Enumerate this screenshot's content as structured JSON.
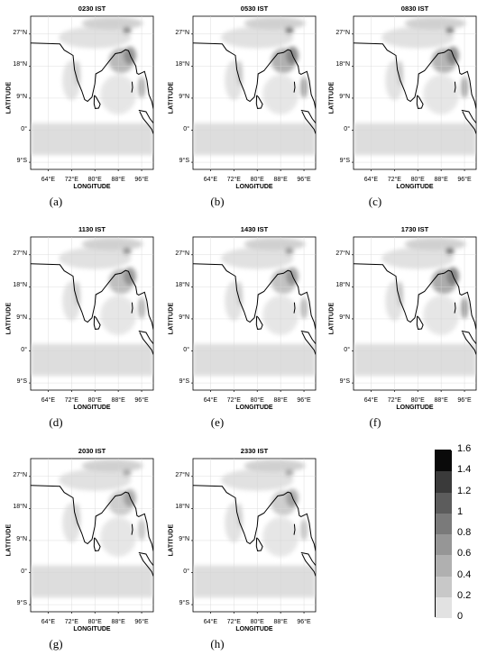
{
  "panels": [
    {
      "title": "0230 IST",
      "caption": "(a)",
      "intensity": 0.75
    },
    {
      "title": "0530 IST",
      "caption": "(b)",
      "intensity": 0.85
    },
    {
      "title": "0830 IST",
      "caption": "(c)",
      "intensity": 0.8
    },
    {
      "title": "1130 IST",
      "caption": "(d)",
      "intensity": 0.7
    },
    {
      "title": "1430 IST",
      "caption": "(e)",
      "intensity": 0.65
    },
    {
      "title": "1730 IST",
      "caption": "(f)",
      "intensity": 0.9
    },
    {
      "title": "2030 IST",
      "caption": "(g)",
      "intensity": 0.55
    },
    {
      "title": "2330 IST",
      "caption": "(h)",
      "intensity": 0.55
    }
  ],
  "axes": {
    "ylabel": "LATITUDE",
    "xlabel": "LONGITUDE",
    "lat_ticks": [
      "27°N",
      "18°N",
      "9°N",
      "0°",
      "9°S"
    ],
    "lon_ticks": [
      "64°E",
      "72°E",
      "80°E",
      "88°E",
      "96°E"
    ]
  },
  "colorbar": {
    "labels": [
      "1.6",
      "1.4",
      "1.2",
      "1",
      "0.8",
      "0.6",
      "0.4",
      "0.2",
      "0"
    ],
    "colors": [
      "#0a0a0a",
      "#3a3a3a",
      "#5c5c5c",
      "#7a7a7a",
      "#969696",
      "#b0b0b0",
      "#c8c8c8",
      "#e2e2e2"
    ]
  }
}
